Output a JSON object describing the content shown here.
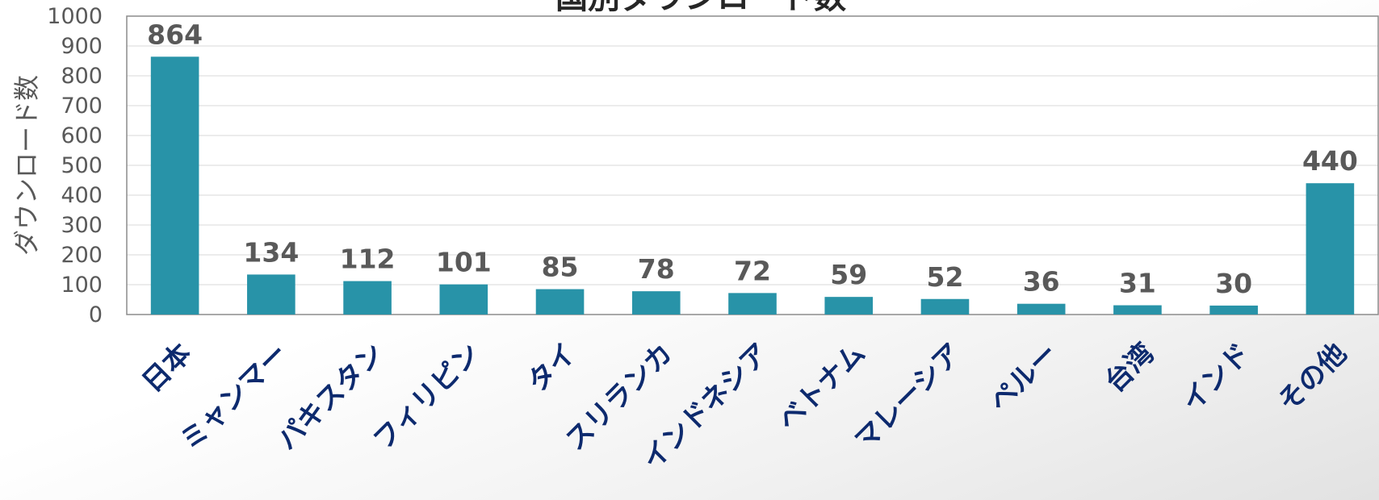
{
  "chart_data": {
    "type": "bar",
    "title": "国別ダウンロード数",
    "xlabel": "",
    "ylabel": "ダウンロード数",
    "ylim": [
      0,
      1000
    ],
    "yticks": [
      0,
      100,
      200,
      300,
      400,
      500,
      600,
      700,
      800,
      900,
      1000
    ],
    "categories": [
      "日本",
      "ミャンマー",
      "パキスタン",
      "フィリピン",
      "タイ",
      "スリランカ",
      "インドネシア",
      "ベトナム",
      "マレーシア",
      "ペルー",
      "台湾",
      "インド",
      "その他"
    ],
    "values": [
      864,
      134,
      112,
      101,
      85,
      78,
      72,
      59,
      52,
      36,
      31,
      30,
      440
    ],
    "bar_color": "#2893a8",
    "grid": true,
    "legend": "none"
  }
}
